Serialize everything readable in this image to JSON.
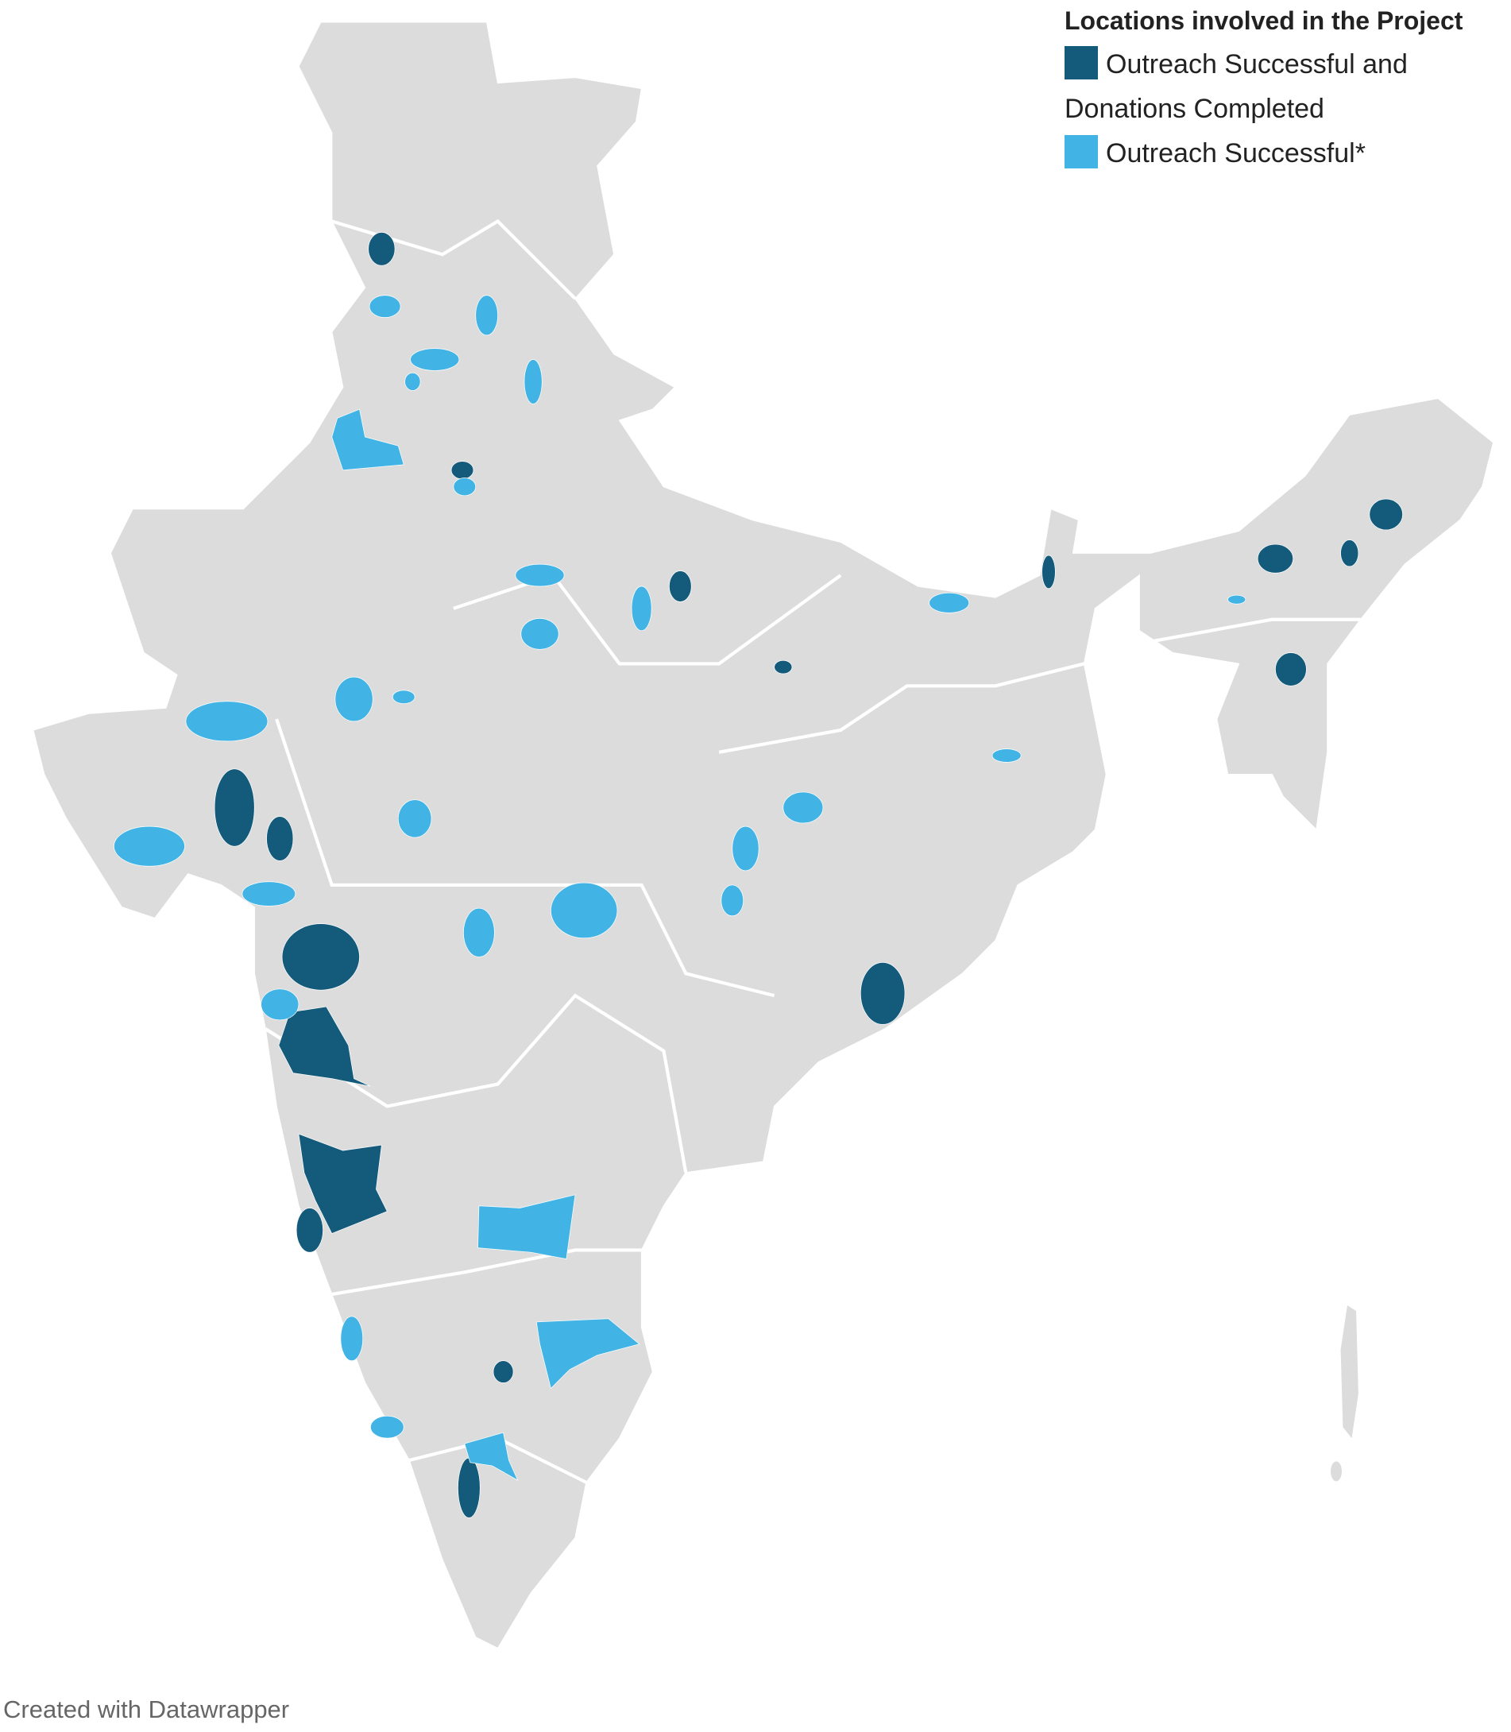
{
  "legend": {
    "title": "Locations involved in the Project",
    "items": [
      {
        "name": "Outreach Successful and Donations Completed",
        "color": "#135a7b"
      },
      {
        "name": "Outreach Successful*",
        "color": "#41b4e5"
      }
    ]
  },
  "footer": "Created with Datawrapper"
}
